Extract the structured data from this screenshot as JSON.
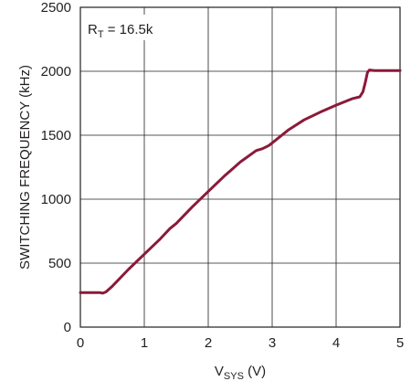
{
  "chart_data": {
    "type": "line",
    "xlabel_main": "V",
    "xlabel_sub": "SYS",
    "xlabel_unit": " (V)",
    "ylabel": "SWITCHING FREQUENCY (kHz)",
    "annotation_main": "R",
    "annotation_sub": "T",
    "annotation_value": " = 16.5k",
    "xlim": [
      0,
      5
    ],
    "ylim": [
      0,
      2500
    ],
    "xticks": [
      "0",
      "1",
      "2",
      "3",
      "4",
      "5"
    ],
    "yticks": [
      "0",
      "500",
      "1000",
      "1500",
      "2000",
      "2500"
    ],
    "grid": true,
    "line_color": "#8b1a3a",
    "series": [
      {
        "x": [
          0.0,
          0.3,
          0.35,
          0.4,
          0.5,
          0.75,
          1.0,
          1.25,
          1.4,
          1.5,
          1.75,
          2.0,
          2.25,
          2.5,
          2.75,
          2.85,
          2.95,
          3.0,
          3.25,
          3.5,
          3.75,
          4.0,
          4.25,
          4.37,
          4.42,
          4.46,
          4.49,
          4.52,
          4.6,
          4.8,
          5.0
        ],
        "y": [
          270,
          270,
          265,
          275,
          320,
          450,
          570,
          690,
          770,
          810,
          940,
          1060,
          1180,
          1290,
          1380,
          1395,
          1420,
          1440,
          1540,
          1620,
          1680,
          1735,
          1785,
          1800,
          1840,
          1920,
          1990,
          2010,
          2005,
          2005,
          2005
        ]
      }
    ]
  }
}
